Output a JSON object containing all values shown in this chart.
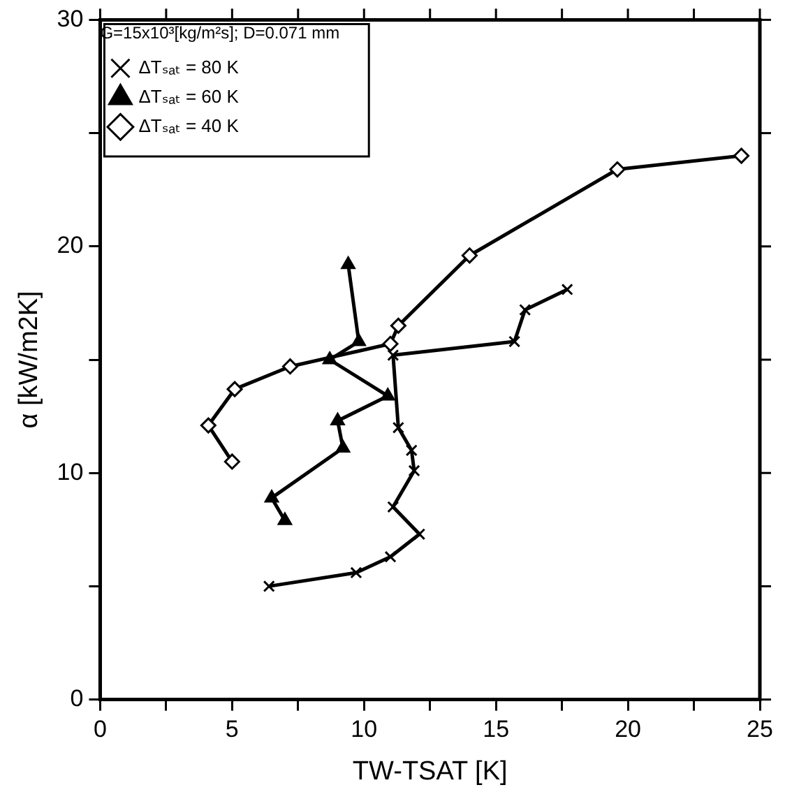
{
  "chart_data": {
    "type": "line",
    "xlabel": "TW-TSAT [K]",
    "ylabel": "α [kW/m2K]",
    "legend_title": "G=15x10³[kg/m²s]; D=0.071 mm",
    "legend": "top left",
    "grid": false,
    "xlim": [
      0,
      25
    ],
    "xticks": [
      0,
      {
        "value": 2.5,
        "label": null
      },
      5,
      {
        "value": 7.5,
        "label": null
      },
      10,
      {
        "value": 12.5,
        "label": null
      },
      15,
      {
        "value": 17.5,
        "label": null
      },
      20,
      {
        "value": 22.5,
        "label": null
      },
      25
    ],
    "ylim": [
      0,
      30
    ],
    "yticks": [
      0,
      {
        "value": 5,
        "label": null
      },
      10,
      {
        "value": 15,
        "label": null
      },
      20,
      {
        "value": 25,
        "label": null
      },
      30
    ],
    "series": [
      {
        "name": "ΔTₛₐₜ = 80 K",
        "color": "#000000",
        "marker": "cross",
        "x": [
          6.4,
          9.7,
          11.0,
          12.1,
          11.1,
          11.9,
          11.8,
          11.3,
          11.1,
          15.7,
          16.1,
          17.7
        ],
        "values": [
          5.0,
          5.6,
          6.3,
          7.3,
          8.5,
          10.1,
          11.0,
          12.0,
          15.2,
          15.8,
          17.2,
          18.1
        ]
      },
      {
        "name": "ΔTₛₐₜ = 60 K",
        "color": "#000000",
        "marker": "triangle",
        "x": [
          9.4,
          9.8,
          8.7,
          10.9,
          9.0,
          9.2,
          6.5,
          7.0
        ],
        "values": [
          19.2,
          15.8,
          15.0,
          13.4,
          12.3,
          11.1,
          8.9,
          7.9
        ]
      },
      {
        "name": "ΔTₛₐₜ = 40 K",
        "color": "#000000",
        "marker": "diamond",
        "x": [
          5.0,
          4.1,
          5.1,
          7.2,
          11.0,
          11.3,
          14.0,
          19.6,
          24.3
        ],
        "values": [
          10.5,
          12.1,
          13.7,
          14.7,
          15.7,
          16.5,
          19.6,
          23.4,
          24.0
        ]
      }
    ]
  }
}
